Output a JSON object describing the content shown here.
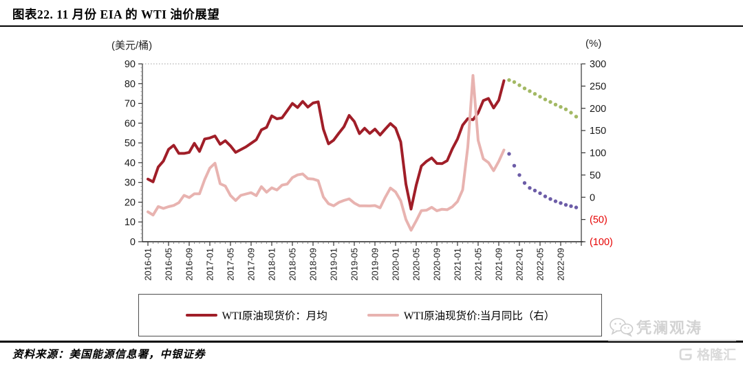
{
  "page": {
    "title": "图表22. 11 月份 EIA 的 WTI 油价展望",
    "source_note": "资料来源：美国能源信息署，中银证券"
  },
  "watermark": {
    "brand1": "凭澜观涛",
    "brand2": "格隆汇",
    "icons": [
      "wechat-icon",
      "gelonghui-logo"
    ]
  },
  "chart_data": {
    "type": "line",
    "title": "11月份EIA的WTI油价展望",
    "n_months": 84,
    "months_start": "2016-01",
    "months_end": "2022-12",
    "left_axis": {
      "unit": "(美元/桶)",
      "range": [
        0,
        90
      ],
      "ticks": [
        90,
        80,
        70,
        60,
        50,
        40,
        30,
        20,
        10,
        0
      ]
    },
    "right_axis": {
      "unit": "(%)",
      "range": [
        -100,
        300
      ],
      "negative_color": "#e60000",
      "ticks": [
        {
          "label": "300",
          "value": 300
        },
        {
          "label": "250",
          "value": 250
        },
        {
          "label": "200",
          "value": 200
        },
        {
          "label": "150",
          "value": 150
        },
        {
          "label": "100",
          "value": 100
        },
        {
          "label": "50",
          "value": 50
        },
        {
          "label": "0",
          "value": 0
        },
        {
          "label": "(50)",
          "value": -50
        },
        {
          "label": "(100)",
          "value": -100
        }
      ]
    },
    "x_ticks": [
      "2016-01",
      "2016-05",
      "2016-09",
      "2017-01",
      "2017-05",
      "2017-09",
      "2018-01",
      "2018-05",
      "2018-09",
      "2019-01",
      "2019-05",
      "2019-09",
      "2020-01",
      "2020-05",
      "2020-09",
      "2021-01",
      "2021-05",
      "2021-09",
      "2022-01",
      "2022-05",
      "2022-09"
    ],
    "series": [
      {
        "id": "wti-spot-price-monthly-avg",
        "axis": "left",
        "line_style": "solid",
        "color": "#A01E28",
        "start_index": 0,
        "values": [
          31.7,
          30.3,
          37.8,
          40.8,
          46.7,
          48.8,
          44.7,
          44.7,
          45.2,
          49.8,
          45.7,
          52.0,
          52.5,
          53.5,
          49.3,
          51.1,
          48.5,
          45.2,
          46.6,
          48.0,
          49.8,
          51.6,
          56.6,
          57.9,
          63.7,
          62.2,
          62.7,
          66.3,
          70.0,
          67.9,
          71.0,
          68.1,
          70.2,
          70.8,
          57.0,
          49.5,
          51.4,
          54.9,
          58.2,
          63.9,
          60.8,
          54.7,
          57.4,
          54.8,
          57.0,
          54.0,
          57.0,
          59.8,
          57.5,
          50.5,
          29.2,
          16.5,
          28.6,
          38.3,
          40.7,
          42.4,
          39.6,
          39.5,
          41.0,
          47.0,
          52.0,
          59.0,
          62.3,
          61.7,
          65.2,
          71.4,
          72.5,
          67.7,
          71.6,
          81.5
        ]
      },
      {
        "id": "wti-spot-yoy",
        "axis": "right",
        "line_style": "solid",
        "color": "#E8B3B0",
        "start_index": 0,
        "values": [
          -32.8,
          -40.1,
          -20.9,
          -25.1,
          -21.2,
          -18.4,
          -12.2,
          4.2,
          -0.7,
          7.8,
          7.8,
          39.8,
          65.6,
          76.6,
          30.4,
          25.2,
          3.9,
          -7.4,
          4.3,
          7.4,
          10.2,
          3.6,
          23.9,
          11.3,
          21.3,
          16.3,
          27.2,
          29.7,
          44.3,
          50.2,
          52.4,
          41.9,
          41.0,
          37.2,
          0.7,
          -14.5,
          -19.3,
          -11.7,
          -7.2,
          -3.6,
          -13.1,
          -19.4,
          -19.2,
          -19.5,
          -18.8,
          -23.7,
          0.0,
          20.8,
          11.9,
          -8.0,
          -49.8,
          -74.2,
          -53.0,
          -30.0,
          -29.1,
          -22.6,
          -30.5,
          -26.9,
          -28.1,
          -21.4,
          -9.6,
          16.8,
          113.4,
          273.9,
          128.0,
          86.4,
          78.1,
          59.7,
          80.8,
          106.3
        ]
      },
      {
        "id": "eia-price-outlook-dotted",
        "axis": "left",
        "line_style": "dotted",
        "color": "#A3B964",
        "start_index": 70,
        "values": [
          81.8,
          80.8,
          79.2,
          77.6,
          76.2,
          74.8,
          73.4,
          72.0,
          70.7,
          69.4,
          68.2,
          67.0,
          65.3,
          63.3
        ]
      },
      {
        "id": "eia-yoy-outlook-dotted",
        "axis": "right",
        "line_style": "dotted",
        "color": "#6C5CA7",
        "start_index": 70,
        "values": [
          97.6,
          71.0,
          50.0,
          32.0,
          21.0,
          15.0,
          9.0,
          2.0,
          -4.0,
          -9.0,
          -13.0,
          -17.0,
          -20.0,
          -23.0
        ]
      }
    ],
    "legend": [
      {
        "label": "WTI原油现货价：月均",
        "color": "#A01E28"
      },
      {
        "label": "WTI原油现货价:当月同比（右）",
        "color": "#E8B3B0"
      }
    ],
    "grid": "top gridline only, dotted",
    "legend_position": "bottom-boxed"
  }
}
